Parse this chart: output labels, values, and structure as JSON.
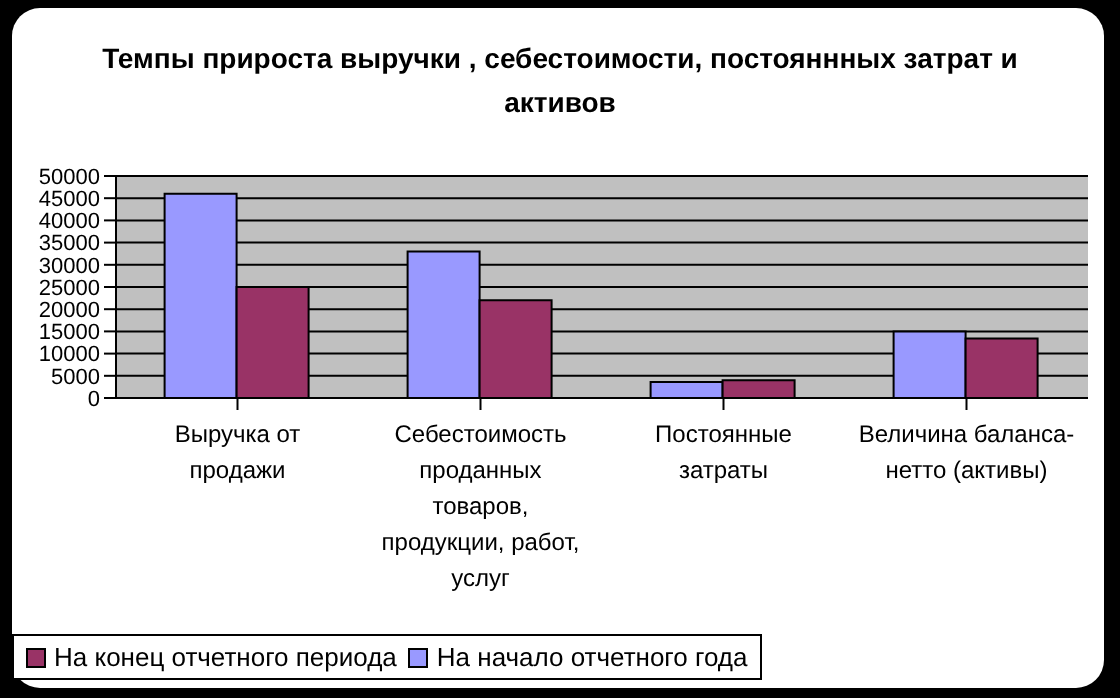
{
  "chart_data": {
    "type": "bar",
    "title": "Темпы прироста выручки , себестоимости, постояннных затрат и активов",
    "categories": [
      "Выручка от продажи",
      "Себестоимость проданных товаров, продукции, работ, услуг",
      "Постоянные затраты",
      "Величина баланса-нетто (активы)"
    ],
    "series": [
      {
        "name": "На начало отчетного года",
        "color": "#9999ff",
        "values": [
          46000,
          33000,
          3600,
          15000
        ]
      },
      {
        "name": "На конец отчетного периода",
        "color": "#993366",
        "values": [
          25000,
          22000,
          4000,
          13400
        ]
      }
    ],
    "ylim": [
      0,
      50000
    ],
    "yticks": [
      0,
      5000,
      10000,
      15000,
      20000,
      25000,
      30000,
      35000,
      40000,
      45000,
      50000
    ],
    "grid": "y",
    "legend": "bottom"
  }
}
